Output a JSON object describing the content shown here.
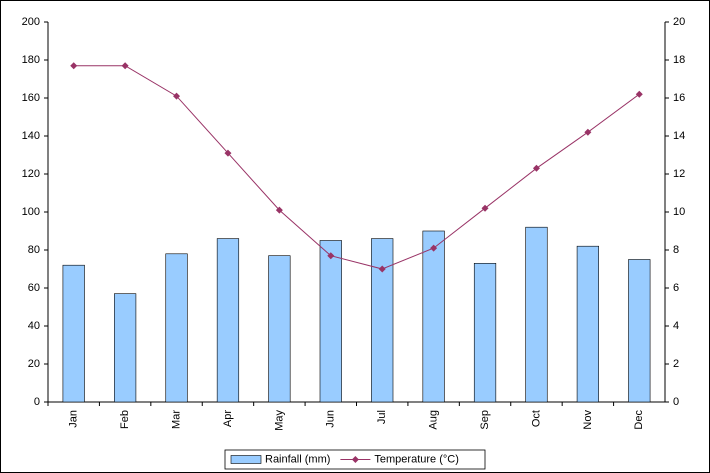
{
  "chart_data": {
    "type": "bar",
    "categories": [
      "Jan",
      "Feb",
      "Mar",
      "Apr",
      "May",
      "Jun",
      "Jul",
      "Aug",
      "Sep",
      "Oct",
      "Nov",
      "Dec"
    ],
    "series": [
      {
        "name": "Rainfall (mm)",
        "type": "bar",
        "color": "#99ccff",
        "values": [
          72,
          57,
          78,
          86,
          77,
          85,
          86,
          90,
          73,
          92,
          82,
          75
        ]
      },
      {
        "name": "Temperature (°C)",
        "type": "line",
        "axis": "y2",
        "color": "#993366",
        "values": [
          17.7,
          17.7,
          16.1,
          13.1,
          10.1,
          7.7,
          7.0,
          8.1,
          10.2,
          12.3,
          14.2,
          16.2
        ]
      }
    ],
    "ylim": [
      0,
      200
    ],
    "yticks": [
      0,
      20,
      40,
      60,
      80,
      100,
      120,
      140,
      160,
      180,
      200
    ],
    "y2lim": [
      0,
      20
    ],
    "y2ticks": [
      0,
      2,
      4,
      6,
      8,
      10,
      12,
      14,
      16,
      18,
      20
    ],
    "grid": false,
    "legend": "bottom"
  }
}
